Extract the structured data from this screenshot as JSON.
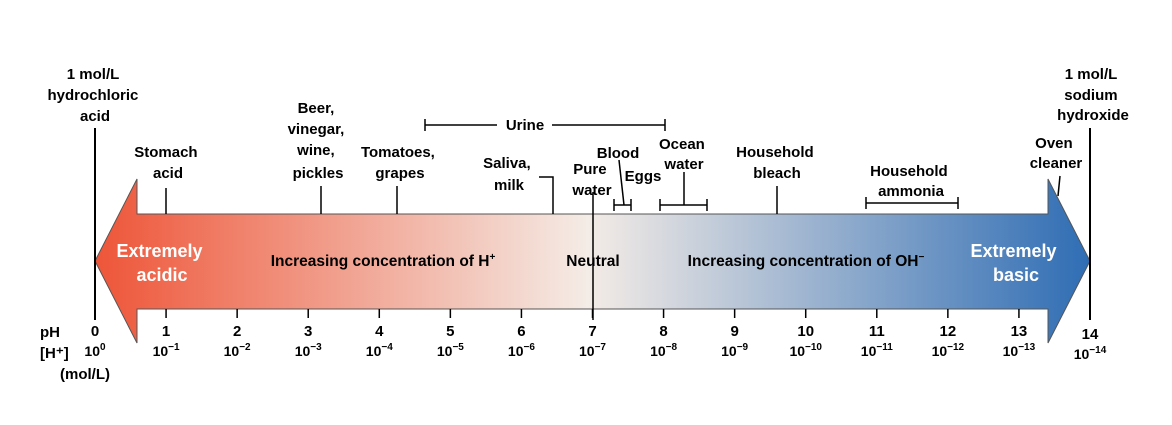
{
  "axis": {
    "ph_label": "pH",
    "h_label": "[H⁺]",
    "unit_label": "(mol/L)",
    "ticks": [
      {
        "ph": "0",
        "mantissa": "10",
        "exp": "0"
      },
      {
        "ph": "1",
        "mantissa": "10",
        "exp": "−1"
      },
      {
        "ph": "2",
        "mantissa": "10",
        "exp": "−2"
      },
      {
        "ph": "3",
        "mantissa": "10",
        "exp": "−3"
      },
      {
        "ph": "4",
        "mantissa": "10",
        "exp": "−4"
      },
      {
        "ph": "5",
        "mantissa": "10",
        "exp": "−5"
      },
      {
        "ph": "6",
        "mantissa": "10",
        "exp": "−6"
      },
      {
        "ph": "7",
        "mantissa": "10",
        "exp": "−7"
      },
      {
        "ph": "8",
        "mantissa": "10",
        "exp": "−8"
      },
      {
        "ph": "9",
        "mantissa": "10",
        "exp": "−9"
      },
      {
        "ph": "10",
        "mantissa": "10",
        "exp": "−10"
      },
      {
        "ph": "11",
        "mantissa": "10",
        "exp": "−11"
      },
      {
        "ph": "12",
        "mantissa": "10",
        "exp": "−12"
      },
      {
        "ph": "13",
        "mantissa": "10",
        "exp": "−13"
      },
      {
        "ph": "14",
        "mantissa": "10",
        "exp": "−14"
      }
    ]
  },
  "arrow": {
    "left_label": [
      "Extremely",
      "acidic"
    ],
    "right_label": [
      "Extremely",
      "basic"
    ],
    "neutral_label": "Neutral",
    "acid_text": "Increasing concentration of H",
    "acid_sup": "+",
    "base_text": "Increasing concentration of OH",
    "base_sup": "−",
    "acid_color": "#ee5538",
    "mid_color": "#f4ece6",
    "base_color": "#2f6db4"
  },
  "substances": {
    "hcl": [
      "1 mol/L",
      "hydrochloric",
      "acid"
    ],
    "naoh": [
      "1 mol/L",
      "sodium",
      "hydroxide"
    ],
    "stomach_acid": [
      "Stomach",
      "acid"
    ],
    "beer": [
      "Beer,",
      "vinegar,",
      "wine,",
      "pickles"
    ],
    "tomatoes": [
      "Tomatoes,",
      "grapes"
    ],
    "urine": "Urine",
    "saliva": [
      "Saliva,",
      "milk"
    ],
    "pure_water": [
      "Pure",
      "water"
    ],
    "blood": "Blood",
    "eggs": "Eggs",
    "ocean_water": [
      "Ocean",
      "water"
    ],
    "household_bleach": [
      "Household",
      "bleach"
    ],
    "household_ammonia": [
      "Household",
      "ammonia"
    ],
    "oven_cleaner": [
      "Oven",
      "cleaner"
    ]
  }
}
